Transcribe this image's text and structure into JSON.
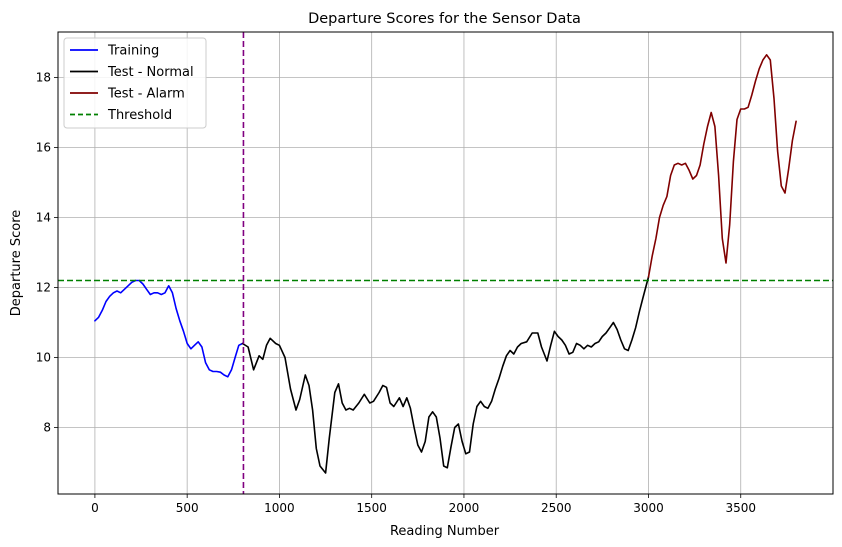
{
  "chart_data": {
    "type": "line",
    "title": "Departure Scores for the Sensor Data",
    "xlabel": "Reading Number",
    "ylabel": "Departure Score",
    "xlim": [
      -200,
      4000
    ],
    "ylim": [
      6.1,
      19.3
    ],
    "xticks": [
      0,
      500,
      1000,
      1500,
      2000,
      2500,
      3000,
      3500
    ],
    "yticks": [
      8,
      10,
      12,
      14,
      16,
      18
    ],
    "grid": true,
    "legend_position": "upper-left",
    "threshold": 12.2,
    "split_line_x": 805,
    "series": [
      {
        "name": "Training",
        "color": "#0000ff",
        "x": [
          0,
          20,
          40,
          60,
          80,
          100,
          120,
          140,
          160,
          180,
          200,
          220,
          240,
          260,
          280,
          300,
          320,
          340,
          360,
          380,
          400,
          420,
          440,
          460,
          480,
          500,
          520,
          540,
          560,
          580,
          600,
          620,
          640,
          660,
          680,
          700,
          720,
          740,
          760,
          780,
          800
        ],
        "y": [
          11.05,
          11.15,
          11.35,
          11.6,
          11.75,
          11.85,
          11.9,
          11.85,
          11.95,
          12.05,
          12.15,
          12.2,
          12.2,
          12.1,
          11.95,
          11.8,
          11.85,
          11.85,
          11.8,
          11.85,
          12.05,
          11.85,
          11.4,
          11.05,
          10.75,
          10.4,
          10.25,
          10.35,
          10.45,
          10.3,
          9.85,
          9.65,
          9.6,
          9.6,
          9.58,
          9.5,
          9.45,
          9.65,
          10.0,
          10.35,
          10.4
        ]
      },
      {
        "name": "Test - Normal",
        "color": "#000000",
        "x": [
          800,
          830,
          860,
          890,
          910,
          930,
          950,
          980,
          1000,
          1030,
          1060,
          1090,
          1110,
          1140,
          1160,
          1180,
          1200,
          1220,
          1250,
          1270,
          1300,
          1320,
          1340,
          1360,
          1380,
          1400,
          1430,
          1460,
          1490,
          1510,
          1540,
          1560,
          1580,
          1600,
          1620,
          1650,
          1670,
          1690,
          1710,
          1730,
          1750,
          1770,
          1790,
          1810,
          1830,
          1850,
          1870,
          1890,
          1910,
          1930,
          1950,
          1970,
          1990,
          2010,
          2030,
          2050,
          2070,
          2090,
          2110,
          2130,
          2150,
          2170,
          2190,
          2210,
          2230,
          2250,
          2270,
          2290,
          2310,
          2340,
          2370,
          2400,
          2420,
          2450,
          2470,
          2490,
          2510,
          2530,
          2550,
          2570,
          2590,
          2610,
          2630,
          2650,
          2670,
          2690,
          2710,
          2730,
          2750,
          2770,
          2790,
          2810,
          2830,
          2850,
          2870,
          2890,
          2910,
          2930,
          2950,
          2970,
          2990,
          3000
        ],
        "y": [
          10.4,
          10.3,
          9.65,
          10.05,
          9.95,
          10.35,
          10.55,
          10.4,
          10.35,
          10.0,
          9.1,
          8.5,
          8.8,
          9.5,
          9.2,
          8.5,
          7.4,
          6.9,
          6.7,
          7.7,
          9.0,
          9.25,
          8.7,
          8.5,
          8.55,
          8.5,
          8.7,
          8.95,
          8.7,
          8.75,
          9.0,
          9.2,
          9.15,
          8.7,
          8.6,
          8.85,
          8.6,
          8.85,
          8.55,
          8.0,
          7.5,
          7.3,
          7.6,
          8.3,
          8.45,
          8.3,
          7.7,
          6.9,
          6.85,
          7.45,
          8.0,
          8.1,
          7.6,
          7.25,
          7.3,
          8.1,
          8.6,
          8.75,
          8.6,
          8.55,
          8.75,
          9.1,
          9.4,
          9.75,
          10.05,
          10.2,
          10.1,
          10.3,
          10.4,
          10.45,
          10.7,
          10.7,
          10.3,
          9.9,
          10.35,
          10.75,
          10.6,
          10.5,
          10.35,
          10.1,
          10.15,
          10.4,
          10.35,
          10.25,
          10.35,
          10.3,
          10.4,
          10.45,
          10.6,
          10.7,
          10.85,
          11.0,
          10.8,
          10.5,
          10.25,
          10.2,
          10.5,
          10.85,
          11.3,
          11.7,
          12.1,
          12.3
        ]
      },
      {
        "name": "Test - Alarm",
        "color": "#800000",
        "x": [
          3000,
          3020,
          3040,
          3060,
          3080,
          3100,
          3120,
          3140,
          3160,
          3180,
          3200,
          3220,
          3240,
          3260,
          3280,
          3300,
          3320,
          3340,
          3360,
          3380,
          3400,
          3420,
          3440,
          3460,
          3480,
          3500,
          3520,
          3540,
          3560,
          3580,
          3600,
          3620,
          3640,
          3660,
          3680,
          3700,
          3720,
          3740,
          3760,
          3780,
          3800
        ],
        "y": [
          12.3,
          12.9,
          13.4,
          14.0,
          14.35,
          14.6,
          15.2,
          15.5,
          15.55,
          15.5,
          15.55,
          15.35,
          15.1,
          15.2,
          15.5,
          16.1,
          16.6,
          17.0,
          16.6,
          15.2,
          13.4,
          12.7,
          13.8,
          15.6,
          16.8,
          17.1,
          17.1,
          17.15,
          17.5,
          17.9,
          18.25,
          18.5,
          18.65,
          18.5,
          17.4,
          15.9,
          14.9,
          14.7,
          15.4,
          16.2,
          16.75
        ]
      },
      {
        "name": "Threshold",
        "color": "#008000",
        "dashed": true
      }
    ]
  }
}
